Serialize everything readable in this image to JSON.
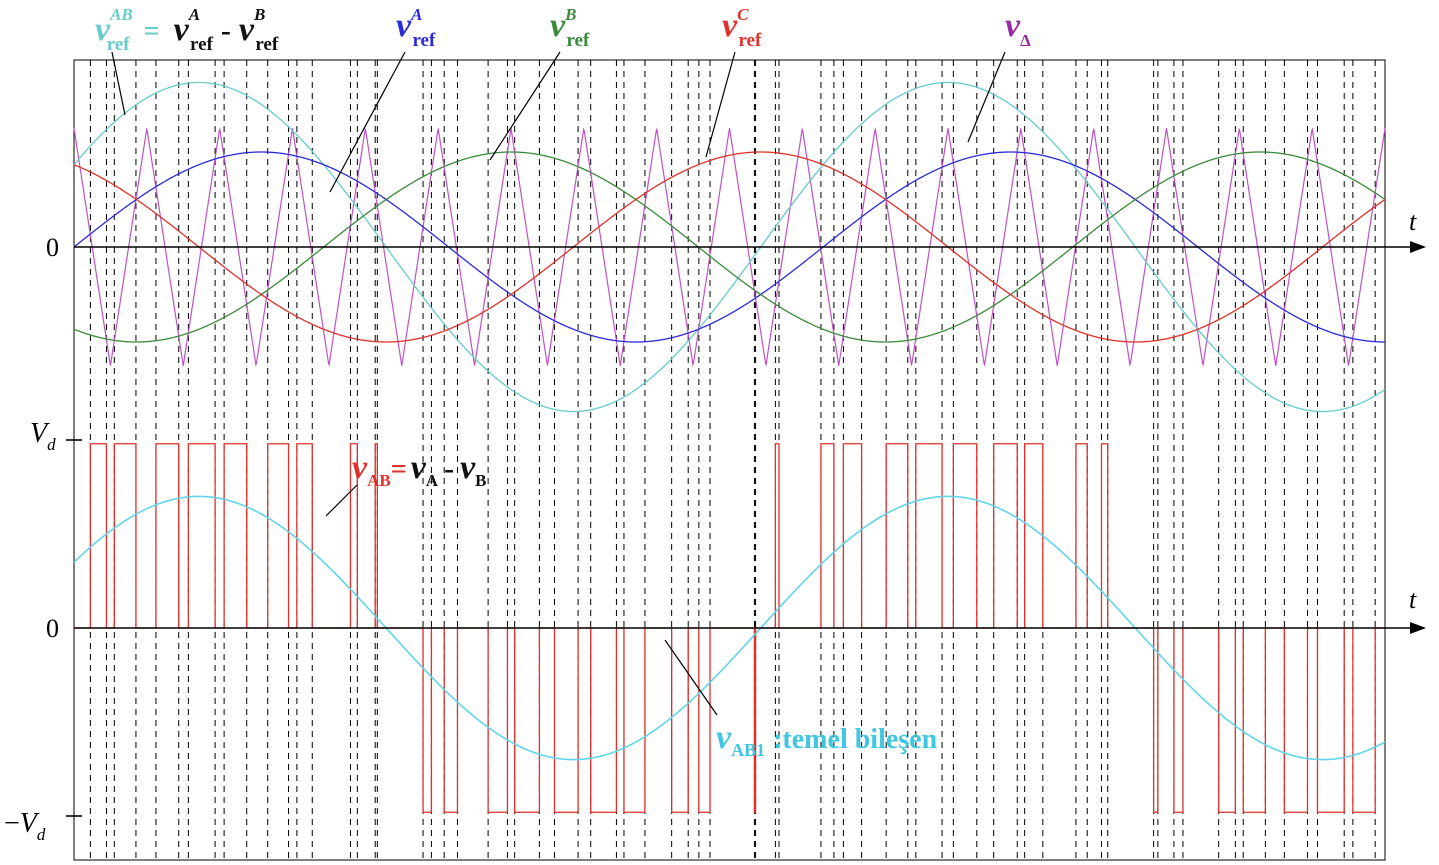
{
  "chart_data": [
    {
      "type": "line",
      "panel": "references-and-carrier",
      "title": "",
      "xlabel": "t",
      "ylabel": "",
      "axis_label": "t",
      "y_tick_labels": [
        "0"
      ],
      "x_range_cycles": [
        0,
        1.75
      ],
      "carrier_periods": 18,
      "grid": false,
      "series": [
        {
          "key": "vAB_ref",
          "main": "v",
          "sup": "AB",
          "sub": "ref",
          "color": "#66cccc",
          "amplitude": 1.732,
          "phase_deg": 30
        },
        {
          "key": "vA_ref",
          "main": "v",
          "sup": "A",
          "sub": "ref",
          "color": "#2a2ad8",
          "amplitude": 1.0,
          "phase_deg": 0
        },
        {
          "key": "vB_ref",
          "main": "v",
          "sup": "B",
          "sub": "ref",
          "color": "#3a8a3a",
          "amplitude": 1.0,
          "phase_deg": -120
        },
        {
          "key": "vC_ref",
          "main": "v",
          "sup": "C",
          "sub": "ref",
          "color": "#e0302a",
          "amplitude": 1.0,
          "phase_deg": 120
        },
        {
          "key": "v_delta",
          "main": "v",
          "sub": "Δ",
          "color": "#c050c8",
          "amplitude": 1.25,
          "kind": "triangle-carrier"
        }
      ],
      "equation": {
        "eq": "=",
        "minus": "-",
        "terms": [
          {
            "main": "v",
            "sup": "A",
            "sub": "ref"
          },
          {
            "main": "v",
            "sup": "B",
            "sub": "ref"
          }
        ]
      }
    },
    {
      "type": "line",
      "panel": "line-voltage",
      "title": "",
      "xlabel": "t",
      "ylabel": "",
      "axis_label": "t",
      "y_tick_labels": [
        "V_d",
        "0",
        "-V_d"
      ],
      "y_ticks": {
        "top": {
          "main": "V",
          "sub": "d"
        },
        "zero": "0",
        "bottom": {
          "prefix": "−",
          "main": "V",
          "sub": "d"
        }
      },
      "grid": false,
      "series": [
        {
          "key": "vAB",
          "main": "v",
          "sub": "AB",
          "color": "#e0302a",
          "kind": "pwm",
          "levels": [
            -1,
            0,
            1
          ]
        },
        {
          "key": "vAB1",
          "main": "v",
          "sub": "AB1",
          "color": "#5fd6e8",
          "amplitude": 0.7,
          "phase_deg": 30,
          "caption": ":temel bileşen"
        }
      ],
      "equation": {
        "eq": "=",
        "minus": "-",
        "terms": [
          {
            "main": "v",
            "sub": "A"
          },
          {
            "main": "v",
            "sub": "B"
          }
        ]
      }
    }
  ]
}
